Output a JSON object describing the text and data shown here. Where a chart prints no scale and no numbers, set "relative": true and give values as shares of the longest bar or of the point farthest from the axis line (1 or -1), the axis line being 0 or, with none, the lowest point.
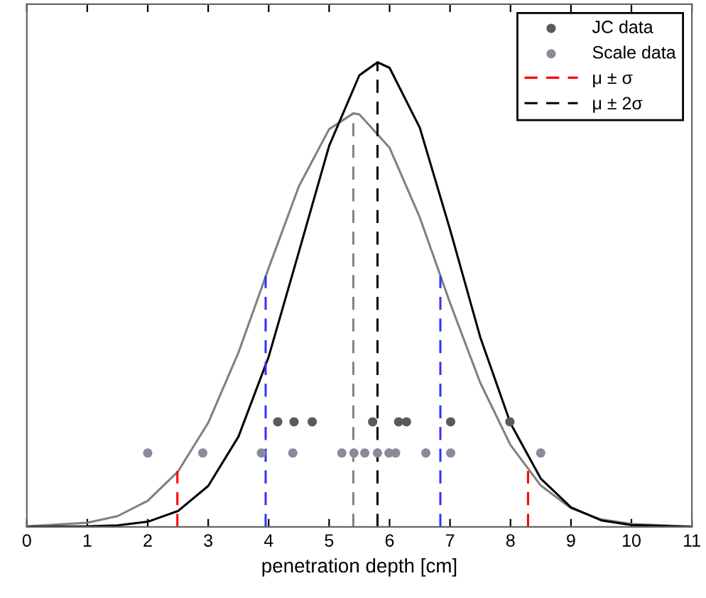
{
  "chart_data": {
    "type": "line",
    "relative": true,
    "xlabel": "penetration depth [cm]",
    "xlim": [
      0,
      11
    ],
    "xticks": [
      0,
      1,
      2,
      3,
      4,
      5,
      6,
      7,
      8,
      9,
      10,
      11
    ],
    "grid": false,
    "legend": "top right",
    "tick_labels": "x",
    "series": [
      {
        "color": "#808080",
        "line_style": "solid",
        "x": [
          0,
          1,
          1.5,
          2,
          2.5,
          3,
          3.5,
          4,
          4.5,
          5,
          5.4,
          5.5,
          6,
          6.5,
          7,
          7.5,
          8,
          8.5,
          9,
          9.5,
          10,
          11
        ],
        "values": [
          0.001,
          0.009,
          0.023,
          0.056,
          0.119,
          0.224,
          0.375,
          0.557,
          0.733,
          0.856,
          0.89,
          0.888,
          0.816,
          0.666,
          0.482,
          0.31,
          0.176,
          0.089,
          0.04,
          0.016,
          0.006,
          0.0005
        ]
      },
      {
        "color": "#000000",
        "line_style": "solid",
        "x": [
          0,
          1,
          1.5,
          2,
          2.5,
          3,
          3.5,
          4,
          4.5,
          5,
          5.5,
          5.8,
          6,
          6.5,
          7,
          7.5,
          8,
          8.5,
          9,
          9.5,
          10,
          11
        ],
        "values": [
          0.0,
          0.001,
          0.003,
          0.011,
          0.034,
          0.088,
          0.194,
          0.366,
          0.592,
          0.82,
          0.972,
          1.0,
          0.988,
          0.859,
          0.64,
          0.408,
          0.223,
          0.104,
          0.042,
          0.014,
          0.004,
          0.0002
        ]
      },
      {
        "type": "scatter",
        "name": "JC data",
        "color": "#5a5a5a",
        "marker": "circle",
        "x": [
          4.15,
          4.42,
          4.72,
          5.72,
          6.15,
          6.28,
          7.01,
          7.99
        ],
        "values": [
          0.226,
          0.226,
          0.226,
          0.226,
          0.226,
          0.226,
          0.226,
          0.226
        ]
      },
      {
        "type": "scatter",
        "name": "Scale data",
        "color": "#8a8a9a",
        "marker": "circle",
        "x": [
          2.0,
          2.91,
          3.88,
          4.4,
          5.21,
          5.41,
          5.59,
          5.8,
          5.99,
          6.1,
          6.6,
          7.01,
          8.5
        ],
        "values": [
          0.159,
          0.159,
          0.159,
          0.159,
          0.159,
          0.159,
          0.159,
          0.159,
          0.159,
          0.159,
          0.159,
          0.159,
          0.159
        ]
      },
      {
        "name": "μ ± σ",
        "color": "#ff0000",
        "line_style": "dashed",
        "x": [
          2.49,
          2.49
        ],
        "values": [
          0,
          0.12
        ]
      },
      {
        "color": "#ff0000",
        "line_style": "dashed",
        "x": [
          8.29,
          8.29
        ],
        "values": [
          0,
          0.12
        ]
      },
      {
        "name": "μ ± 2σ",
        "color": "#000000",
        "line_style": "dashed",
        "x": [
          5.8,
          5.8
        ],
        "values": [
          0,
          1.0
        ]
      },
      {
        "color": "#808090",
        "line_style": "dashed",
        "x": [
          5.4,
          5.4
        ],
        "values": [
          0,
          0.89
        ]
      },
      {
        "color": "#3333ff",
        "line_style": "dashed",
        "x": [
          3.95,
          3.95
        ],
        "values": [
          0,
          0.54
        ]
      },
      {
        "color": "#3333ff",
        "line_style": "dashed",
        "x": [
          6.84,
          6.84
        ],
        "values": [
          0,
          0.54
        ]
      }
    ]
  }
}
